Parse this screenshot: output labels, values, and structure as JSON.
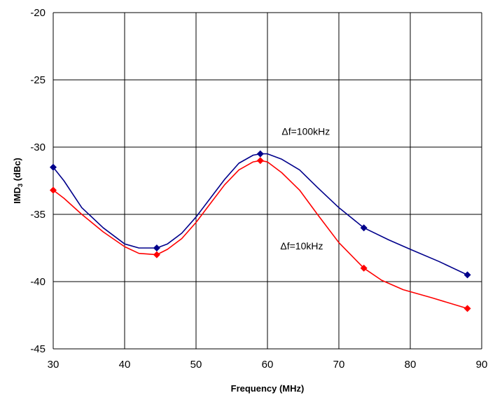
{
  "chart_data": {
    "type": "line",
    "title": "",
    "xlabel": "Frequency (MHz)",
    "ylabel_main": "IMD",
    "ylabel_sub": "3",
    "ylabel_rest": " (dBc)",
    "xlim": [
      30,
      90
    ],
    "ylim": [
      -45,
      -20
    ],
    "xticks": [
      30,
      40,
      50,
      60,
      70,
      80,
      90
    ],
    "yticks": [
      -20,
      -25,
      -30,
      -35,
      -40,
      -45
    ],
    "grid": true,
    "series": [
      {
        "name": "Δf=100kHz",
        "color": "#00008b",
        "marker": "diamond",
        "points": [
          {
            "x": 30,
            "y": -31.5
          },
          {
            "x": 44.5,
            "y": -37.5
          },
          {
            "x": 59,
            "y": -30.5
          },
          {
            "x": 73.5,
            "y": -36
          },
          {
            "x": 88,
            "y": -39.5
          }
        ],
        "curve": [
          [
            30,
            -31.5
          ],
          [
            31.5,
            -32.5
          ],
          [
            34,
            -34.5
          ],
          [
            37,
            -36
          ],
          [
            40,
            -37.2
          ],
          [
            42,
            -37.5
          ],
          [
            44.5,
            -37.5
          ],
          [
            46,
            -37.2
          ],
          [
            48,
            -36.4
          ],
          [
            50,
            -35.2
          ],
          [
            52,
            -33.8
          ],
          [
            54,
            -32.4
          ],
          [
            56,
            -31.2
          ],
          [
            58,
            -30.6
          ],
          [
            59,
            -30.5
          ],
          [
            60,
            -30.5
          ],
          [
            62,
            -30.9
          ],
          [
            64.5,
            -31.7
          ],
          [
            67,
            -33
          ],
          [
            70,
            -34.5
          ],
          [
            73.5,
            -36
          ],
          [
            77,
            -36.9
          ],
          [
            80,
            -37.6
          ],
          [
            84,
            -38.5
          ],
          [
            88,
            -39.5
          ]
        ]
      },
      {
        "name": "Δf=10kHz",
        "color": "#ff0000",
        "marker": "diamond",
        "points": [
          {
            "x": 30,
            "y": -33.2
          },
          {
            "x": 44.5,
            "y": -38
          },
          {
            "x": 59,
            "y": -31
          },
          {
            "x": 73.5,
            "y": -39
          },
          {
            "x": 88,
            "y": -42
          }
        ],
        "curve": [
          [
            30,
            -33.2
          ],
          [
            31.5,
            -33.8
          ],
          [
            34,
            -35
          ],
          [
            37,
            -36.3
          ],
          [
            40,
            -37.4
          ],
          [
            42,
            -37.9
          ],
          [
            44.5,
            -38
          ],
          [
            46,
            -37.6
          ],
          [
            48,
            -36.8
          ],
          [
            50,
            -35.6
          ],
          [
            52,
            -34.2
          ],
          [
            54,
            -32.8
          ],
          [
            56,
            -31.7
          ],
          [
            58,
            -31.1
          ],
          [
            59,
            -31
          ],
          [
            60,
            -31.1
          ],
          [
            62,
            -31.9
          ],
          [
            64.5,
            -33.2
          ],
          [
            67,
            -35
          ],
          [
            70,
            -37.1
          ],
          [
            73.5,
            -39
          ],
          [
            76,
            -39.9
          ],
          [
            79,
            -40.6
          ],
          [
            83,
            -41.2
          ],
          [
            88,
            -42
          ]
        ]
      }
    ],
    "annotations": [
      {
        "text": "Δf=100kHz",
        "x": 62,
        "y": -29.1
      },
      {
        "text": "Δf=10kHz",
        "x": 61.8,
        "y": -37.6
      }
    ]
  }
}
